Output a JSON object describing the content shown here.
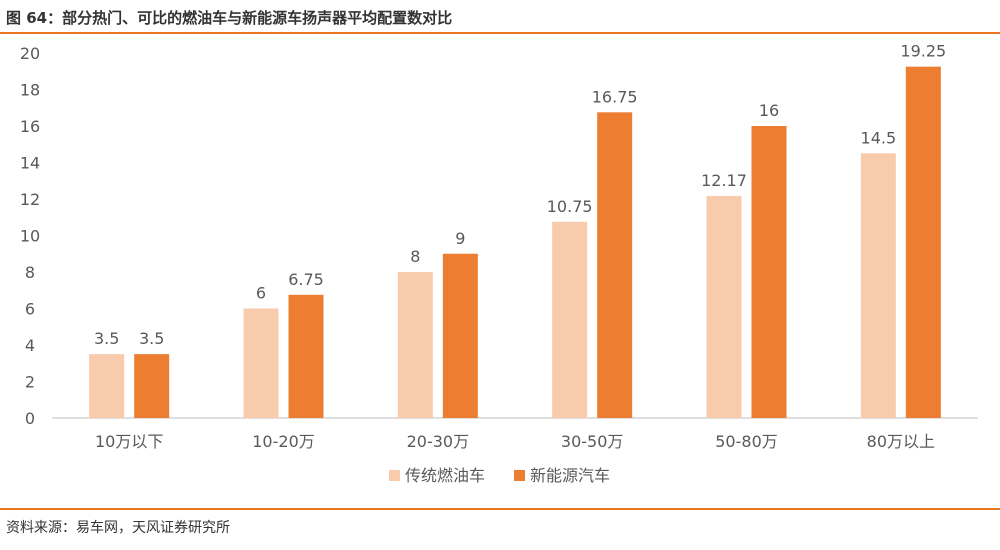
{
  "title": "图 64：部分热门、可比的燃油车与新能源车扬声器平均配置数对比",
  "source": "资料来源：易车网，天风证券研究所",
  "colors": {
    "rule": "#E87722",
    "fuel": "#F8CBAD",
    "nev": "#ED7D31",
    "text": "#595959",
    "axis": "#BFBFBF"
  },
  "chart_data": {
    "type": "bar",
    "categories": [
      "10万以下",
      "10-20万",
      "20-30万",
      "30-50万",
      "50-80万",
      "80万以上"
    ],
    "series": [
      {
        "name": "传统燃油车",
        "values": [
          3.5,
          6,
          8,
          10.75,
          12.17,
          14.5
        ],
        "data_labels": [
          "3.5",
          "6",
          "8",
          "10.75",
          "12.17",
          "14.5"
        ]
      },
      {
        "name": "新能源汽车",
        "values": [
          3.5,
          6.75,
          9,
          16.75,
          16,
          19.25
        ],
        "data_labels": [
          "3.5",
          "6.75",
          "9",
          "16.75",
          "16",
          "19.25"
        ]
      }
    ],
    "ylim": [
      0,
      20
    ],
    "yticks": [
      "0",
      "2",
      "4",
      "6",
      "8",
      "10",
      "12",
      "14",
      "16",
      "18",
      "20"
    ],
    "grid": false,
    "legend": "bottom-center"
  }
}
